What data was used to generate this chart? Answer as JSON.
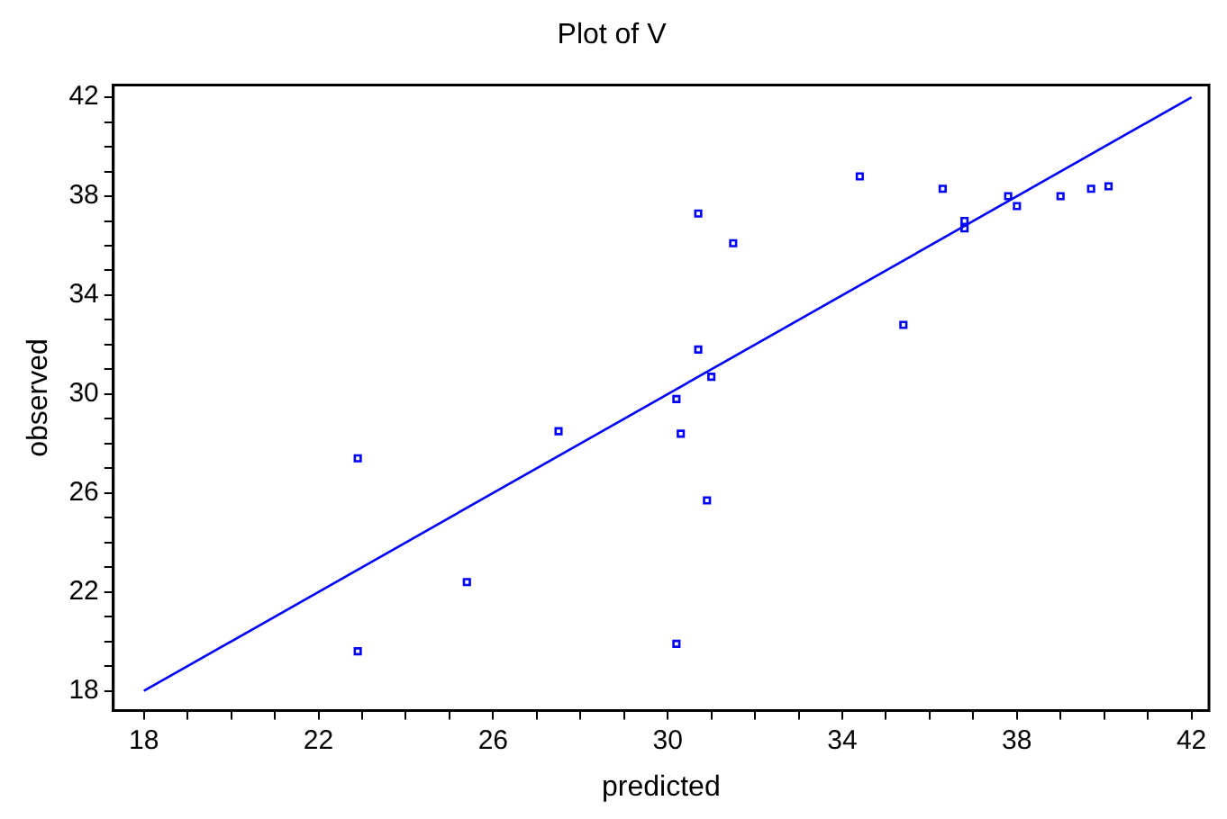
{
  "chart_data": {
    "type": "scatter",
    "title": "Plot of V",
    "xlabel": "predicted",
    "ylabel": "observed",
    "xlim": [
      17.3,
      42.4
    ],
    "ylim": [
      17.2,
      42.5
    ],
    "xticks": [
      18,
      {
        "value": 19,
        "label": null
      },
      {
        "value": 20,
        "label": null
      },
      {
        "value": 21,
        "label": null
      },
      22,
      {
        "value": 23,
        "label": null
      },
      {
        "value": 24,
        "label": null
      },
      {
        "value": 25,
        "label": null
      },
      26,
      {
        "value": 27,
        "label": null
      },
      {
        "value": 28,
        "label": null
      },
      {
        "value": 29,
        "label": null
      },
      30,
      {
        "value": 31,
        "label": null
      },
      {
        "value": 32,
        "label": null
      },
      {
        "value": 33,
        "label": null
      },
      34,
      {
        "value": 35,
        "label": null
      },
      {
        "value": 36,
        "label": null
      },
      {
        "value": 37,
        "label": null
      },
      38,
      {
        "value": 39,
        "label": null
      },
      {
        "value": 40,
        "label": null
      },
      {
        "value": 41,
        "label": null
      },
      42
    ],
    "yticks": [
      18,
      {
        "value": 19,
        "label": null
      },
      {
        "value": 20,
        "label": null
      },
      {
        "value": 21,
        "label": null
      },
      22,
      {
        "value": 23,
        "label": null
      },
      {
        "value": 24,
        "label": null
      },
      {
        "value": 25,
        "label": null
      },
      26,
      {
        "value": 27,
        "label": null
      },
      {
        "value": 28,
        "label": null
      },
      {
        "value": 29,
        "label": null
      },
      30,
      {
        "value": 31,
        "label": null
      },
      {
        "value": 32,
        "label": null
      },
      {
        "value": 33,
        "label": null
      },
      34,
      {
        "value": 35,
        "label": null
      },
      {
        "value": 36,
        "label": null
      },
      {
        "value": 37,
        "label": null
      },
      38,
      {
        "value": 39,
        "label": null
      },
      {
        "value": 40,
        "label": null
      },
      {
        "value": 41,
        "label": null
      },
      42
    ],
    "grid": false,
    "legend": false,
    "marker": "square",
    "series": [
      {
        "type": "scatter",
        "color": "#0000ff",
        "x": [
          22.9,
          22.9,
          25.4,
          27.5,
          30.2,
          30.2,
          30.3,
          30.7,
          30.7,
          30.9,
          31.0,
          31.5,
          34.4,
          35.4,
          36.3,
          36.8,
          36.8,
          37.8,
          38.0,
          39.0,
          39.7,
          40.1
        ],
        "values": [
          27.4,
          19.6,
          22.4,
          28.5,
          29.8,
          19.9,
          28.4,
          37.3,
          31.8,
          25.7,
          30.7,
          36.1,
          38.8,
          32.8,
          38.3,
          37.0,
          36.7,
          38.0,
          37.6,
          38.0,
          38.3,
          38.4
        ]
      },
      {
        "type": "line",
        "color": "#0000ff",
        "x": [
          18,
          42
        ],
        "values": [
          18,
          42
        ],
        "marker": "none",
        "line_style": "solid"
      }
    ]
  }
}
